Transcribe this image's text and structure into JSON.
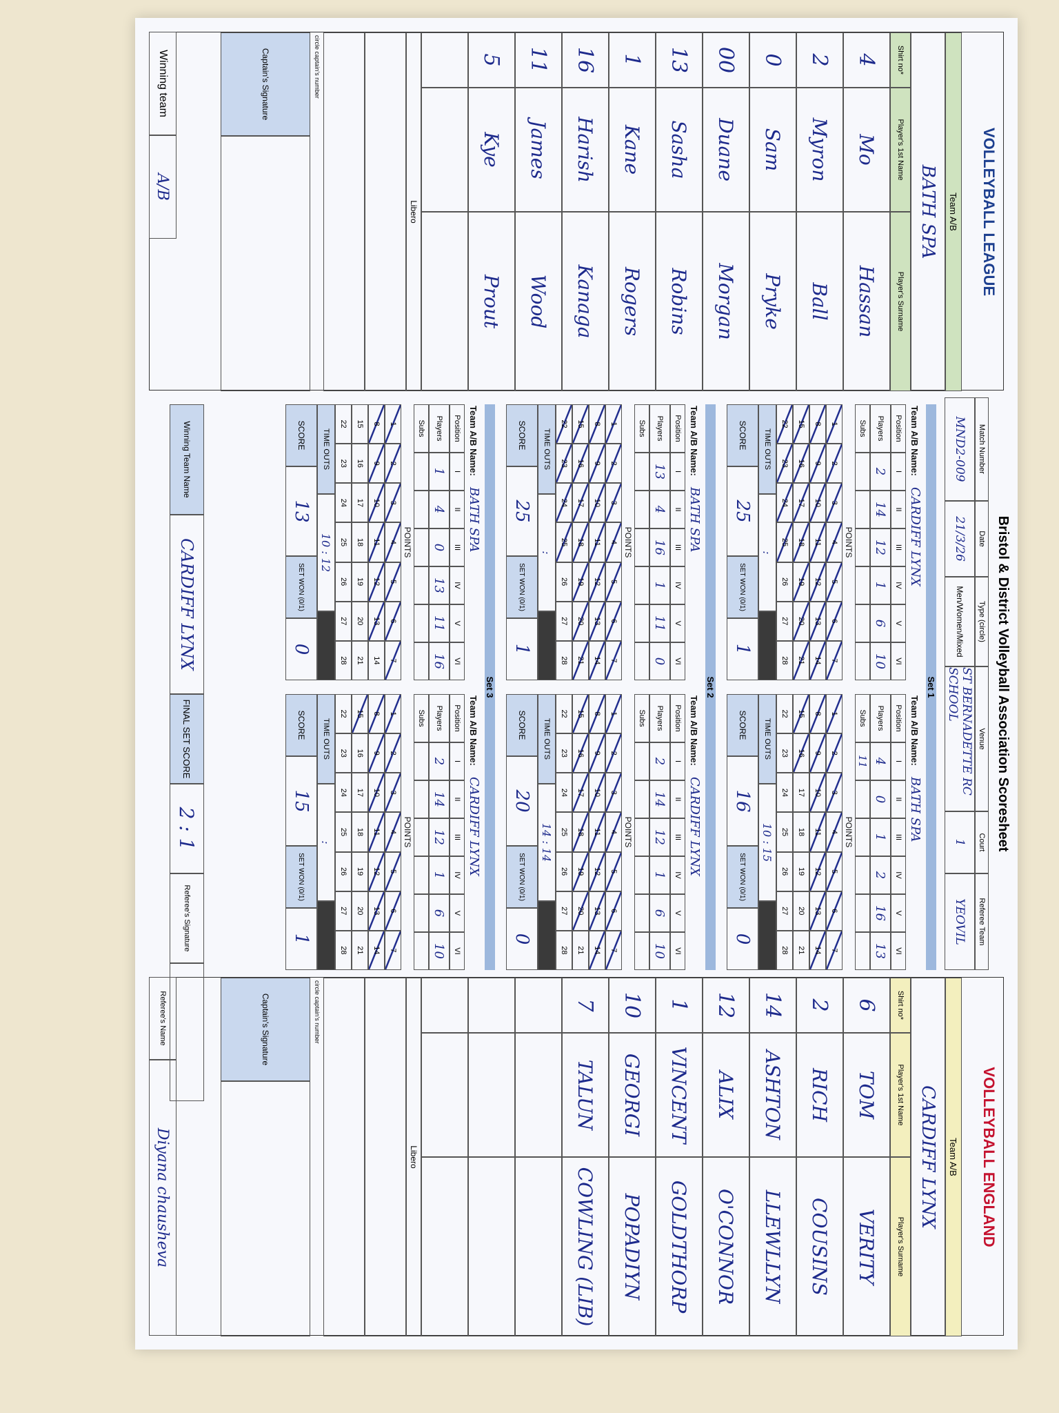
{
  "header": {
    "title": "Bristol & District Volleyball Association Scoresheet",
    "match_number_label": "Match Number",
    "match_number": "MND2-009",
    "date_label": "Date",
    "date": "21/3/26",
    "type_label": "Type (circle)",
    "type": "Men/Women/Mixed",
    "venue_label": "Venue",
    "venue": "ST BERNADETTE RC SCHOOL",
    "court_label": "Court",
    "court": "1",
    "referee_team_label": "Referee Team",
    "referee_team": "YEOVIL",
    "logo_left": "VOLLEYBALL LEAGUE",
    "logo_right": "VOLLEYBALL ENGLAND"
  },
  "labels": {
    "team": "Team A/B",
    "shirt": "Shirt no*",
    "first": "Player's 1st Name",
    "surname": "Player's Surname",
    "libero": "Libero",
    "captain_note": "circle captain's number",
    "captain_signature": "Captain's Signature",
    "team_name": "Team A/B Name:",
    "position": "Position",
    "players": "Players",
    "subs": "Subs",
    "points": "POINTS",
    "time_outs": "TIME OUTS",
    "score": "SCORE",
    "set_won": "SET WON (0/1)",
    "positions": [
      "I",
      "II",
      "III",
      "IV",
      "V",
      "VI"
    ],
    "point_numbers": [
      1,
      2,
      3,
      4,
      5,
      6,
      7,
      8,
      9,
      10,
      11,
      12,
      13,
      14,
      15,
      16,
      17,
      18,
      19,
      20,
      21,
      22,
      23,
      24,
      25,
      26,
      27,
      28
    ]
  },
  "team_a": {
    "name": "BATH SPA",
    "players": [
      {
        "shirt": "4",
        "first": "Mo",
        "surname": "Hassan"
      },
      {
        "shirt": "2",
        "first": "Myron",
        "surname": "Ball"
      },
      {
        "shirt": "0",
        "first": "Sam",
        "surname": "Pryke"
      },
      {
        "shirt": "00",
        "first": "Duane",
        "surname": "Morgan"
      },
      {
        "shirt": "13",
        "first": "Sasha",
        "surname": "Robins"
      },
      {
        "shirt": "1",
        "first": "Kane",
        "surname": "Rogers"
      },
      {
        "shirt": "16",
        "first": "Harish",
        "surname": "Kanaga"
      },
      {
        "shirt": "11",
        "first": "James",
        "surname": "Wood"
      },
      {
        "shirt": "5",
        "first": "Kye",
        "surname": "Prout"
      }
    ]
  },
  "team_b": {
    "name": "CARDIFF LYNX",
    "players": [
      {
        "shirt": "6",
        "first": "TOM",
        "surname": "VERITY"
      },
      {
        "shirt": "2",
        "first": "RICH",
        "surname": "COUSINS"
      },
      {
        "shirt": "14",
        "first": "ASHTON",
        "surname": "LLEWLLYN"
      },
      {
        "shirt": "12",
        "first": "ALIX",
        "surname": "O'CONNOR"
      },
      {
        "shirt": "1",
        "first": "VINCENT",
        "surname": "GOLDTHORP"
      },
      {
        "shirt": "10",
        "first": "GEORGI",
        "surname": "POPADIYN"
      },
      {
        "shirt": "7",
        "first": "TALUN",
        "surname": "COWLING (LIB)"
      }
    ]
  },
  "sets": [
    {
      "title": "Set 1",
      "teams": [
        {
          "name": "CARDIFF LYNX",
          "lineup": [
            "2",
            "14",
            "12",
            "1",
            "6",
            "10"
          ],
          "time_outs": ":",
          "score": "25",
          "set_won": "1"
        },
        {
          "name": "BATH SPA",
          "lineup": [
            "4",
            "0",
            "1",
            "2",
            "16",
            "13"
          ],
          "subs": "11",
          "time_outs": "10 : 15",
          "score": "16",
          "set_won": "0"
        }
      ]
    },
    {
      "title": "Set 2",
      "teams": [
        {
          "name": "BATH SPA",
          "lineup": [
            "13",
            "4",
            "16",
            "1",
            "11",
            "0"
          ],
          "time_outs": ":",
          "score": "25",
          "set_won": "1"
        },
        {
          "name": "CARDIFF LYNX",
          "lineup": [
            "2",
            "14",
            "12",
            "1",
            "6",
            "10"
          ],
          "time_outs": "14 : 14",
          "score": "20",
          "set_won": "0"
        }
      ]
    },
    {
      "title": "Set 3",
      "teams": [
        {
          "name": "BATH SPA",
          "lineup": [
            "1",
            "4",
            "0",
            "13",
            "11",
            "16"
          ],
          "time_outs": "10 : 12",
          "score": "13",
          "set_won": "0"
        },
        {
          "name": "CARDIFF LYNX",
          "lineup": [
            "2",
            "14",
            "12",
            "1",
            "6",
            "10"
          ],
          "time_outs": ":",
          "score": "15",
          "set_won": "1"
        }
      ]
    }
  ],
  "footer": {
    "winning_team_label": "Winning team",
    "winning_team_ab": "A/B",
    "winning_team_name_label": "Winning Team Name",
    "winning_team_name": "CARDIFF LYNX",
    "final_label": "FINAL SET SCORE",
    "final_score": "2 : 1",
    "referee_signature_label": "Referee's Signature",
    "referee_name_label": "Referee's Name",
    "referee_name": "Diyana chausheva"
  }
}
